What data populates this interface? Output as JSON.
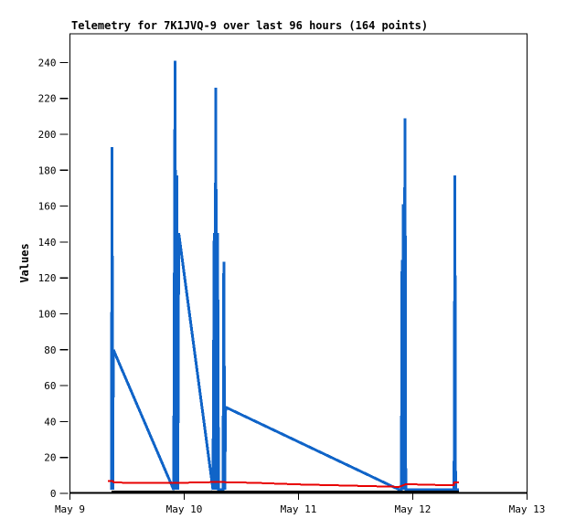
{
  "page": {
    "background_color": "#ffffff",
    "frame_color": "#000000"
  },
  "chart_data": {
    "type": "line",
    "title": "Telemetry for 7K1JVQ-9 over last 96 hours (164 points)",
    "xlabel": "",
    "ylabel": "Values",
    "x_unit": "days since May 9 00:00",
    "xlim": [
      0,
      4
    ],
    "ylim": [
      0,
      256
    ],
    "grid": false,
    "legend": "none",
    "yticks": [
      0,
      20,
      40,
      60,
      80,
      100,
      120,
      140,
      160,
      180,
      200,
      220,
      240
    ],
    "xticks": [
      {
        "pos": 0,
        "label": "May 9"
      },
      {
        "pos": 1,
        "label": "May 10"
      },
      {
        "pos": 2,
        "label": "May 11"
      },
      {
        "pos": 3,
        "label": "May 12"
      },
      {
        "pos": 4,
        "label": "May 13"
      }
    ],
    "series": [
      {
        "name": "telemetry-channel-blue",
        "color": "#1064c8",
        "stroke_width": 3,
        "points": [
          [
            0.364,
            2
          ],
          [
            0.368,
            193
          ],
          [
            0.374,
            2
          ],
          [
            0.38,
            80
          ],
          [
            0.908,
            2
          ],
          [
            0.92,
            241
          ],
          [
            0.928,
            2
          ],
          [
            0.936,
            177
          ],
          [
            0.944,
            2
          ],
          [
            0.952,
            145
          ],
          [
            1.252,
            2
          ],
          [
            1.262,
            145
          ],
          [
            1.268,
            2
          ],
          [
            1.276,
            226
          ],
          [
            1.284,
            2
          ],
          [
            1.292,
            145
          ],
          [
            1.3,
            2
          ],
          [
            1.34,
            2
          ],
          [
            1.346,
            129
          ],
          [
            1.354,
            2
          ],
          [
            1.362,
            48
          ],
          [
            2.884,
            2
          ],
          [
            2.9,
            2
          ],
          [
            2.906,
            130
          ],
          [
            2.912,
            2
          ],
          [
            2.916,
            161
          ],
          [
            2.922,
            2
          ],
          [
            2.928,
            130
          ],
          [
            2.932,
            209
          ],
          [
            2.938,
            2
          ],
          [
            3.36,
            2
          ],
          [
            3.364,
            33
          ],
          [
            3.368,
            177
          ],
          [
            3.374,
            2
          ],
          [
            3.404,
            2
          ]
        ]
      },
      {
        "name": "telemetry-channel-red",
        "color": "#e80000",
        "stroke_width": 2,
        "points": [
          [
            0.332,
            6.8
          ],
          [
            0.376,
            6.8
          ],
          [
            0.384,
            6.0
          ],
          [
            0.92,
            5.8
          ],
          [
            1.2,
            6.2
          ],
          [
            1.3,
            6.3
          ],
          [
            1.6,
            5.9
          ],
          [
            2.0,
            5.0
          ],
          [
            2.4,
            4.4
          ],
          [
            2.7,
            3.9
          ],
          [
            2.88,
            3.6
          ],
          [
            2.94,
            5.1
          ],
          [
            3.1,
            4.9
          ],
          [
            3.32,
            4.5
          ],
          [
            3.358,
            4.5
          ],
          [
            3.362,
            6.1
          ],
          [
            3.404,
            6.1
          ]
        ]
      },
      {
        "name": "telemetry-channel-black",
        "color": "#000000",
        "stroke_width": 3,
        "points": [
          [
            0.364,
            0.8
          ],
          [
            3.404,
            0.8
          ]
        ]
      }
    ]
  }
}
